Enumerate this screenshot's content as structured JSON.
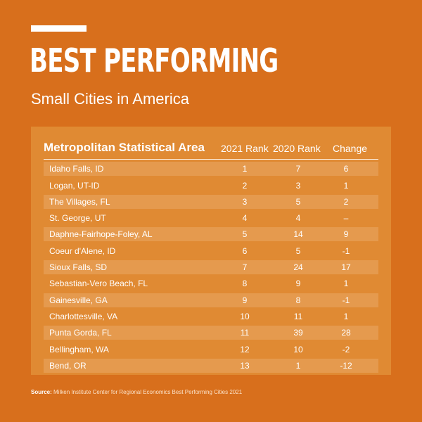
{
  "title": "BEST PERFORMING",
  "subtitle": "Small Cities in America",
  "table": {
    "headers": [
      "Metropolitan Statistical Area",
      "2021 Rank",
      "2020 Rank",
      "Change"
    ],
    "rows": [
      {
        "area": "Idaho Falls, ID",
        "rank2021": "1",
        "rank2020": "7",
        "change": "6"
      },
      {
        "area": "Logan, UT-ID",
        "rank2021": "2",
        "rank2020": "3",
        "change": "1"
      },
      {
        "area": "The Villages, FL",
        "rank2021": "3",
        "rank2020": "5",
        "change": "2"
      },
      {
        "area": "St. George, UT",
        "rank2021": "4",
        "rank2020": "4",
        "change": "–"
      },
      {
        "area": "Daphne-Fairhope-Foley, AL",
        "rank2021": "5",
        "rank2020": "14",
        "change": "9"
      },
      {
        "area": "Coeur d'Alene, ID",
        "rank2021": "6",
        "rank2020": "5",
        "change": "-1"
      },
      {
        "area": "Sioux Falls, SD",
        "rank2021": "7",
        "rank2020": "24",
        "change": "17"
      },
      {
        "area": "Sebastian-Vero Beach, FL",
        "rank2021": "8",
        "rank2020": "9",
        "change": "1"
      },
      {
        "area": "Gainesville, GA",
        "rank2021": "9",
        "rank2020": "8",
        "change": "-1"
      },
      {
        "area": "Charlottesville, VA",
        "rank2021": "10",
        "rank2020": "11",
        "change": "1"
      },
      {
        "area": "Punta Gorda, FL",
        "rank2021": "11",
        "rank2020": "39",
        "change": "28"
      },
      {
        "area": "Bellingham, WA",
        "rank2021": "12",
        "rank2020": "10",
        "change": "-2"
      },
      {
        "area": "Bend, OR",
        "rank2021": "13",
        "rank2020": "1",
        "change": "-12"
      }
    ]
  },
  "source": {
    "label": "Source:",
    "text": "Milken Institute Center for Regional Economics Best Performing Cities 2021"
  },
  "colors": {
    "background": "#D86F1C",
    "panel": "#E08A33",
    "row_shade": "#E59A4E",
    "text": "#FFFFFF"
  }
}
